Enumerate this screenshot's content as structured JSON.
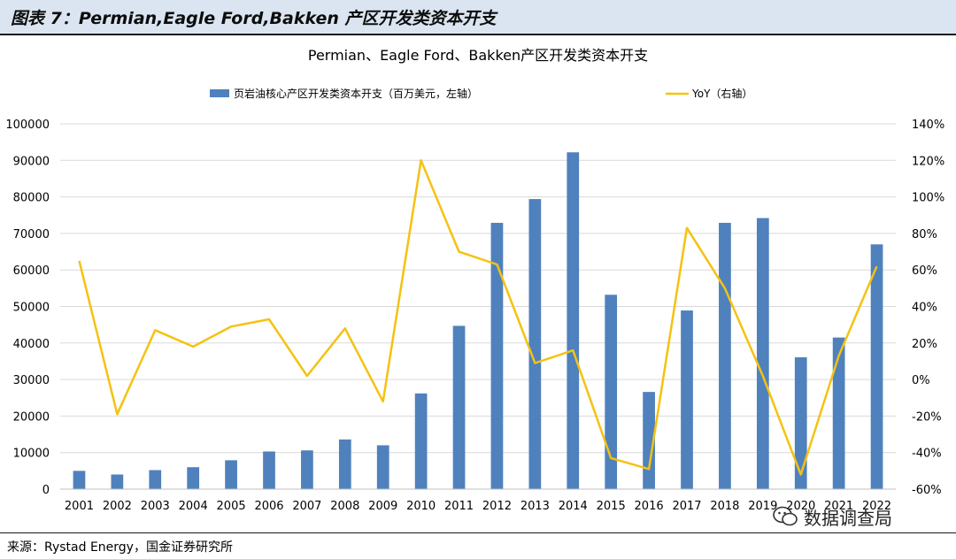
{
  "header": {
    "title": "图表 7：Permian,Eagle Ford,Bakken 产区开发类资本开支"
  },
  "source": {
    "text": "来源：Rystad Energy，国金证券研究所"
  },
  "watermark": {
    "text": "数据调查局",
    "icon": "wechat-icon"
  },
  "colors": {
    "bars": "#4f81bd",
    "line": "#f5c211",
    "grid": "#d9d9d9",
    "header_bg": "#dbe5f1"
  },
  "chart_data": {
    "type": "bar",
    "title": "Permian、Eagle Ford、Bakken产区开发类资本开支",
    "categories": [
      "2001",
      "2002",
      "2003",
      "2004",
      "2005",
      "2006",
      "2007",
      "2008",
      "2009",
      "2010",
      "2011",
      "2012",
      "2013",
      "2014",
      "2015",
      "2016",
      "2017",
      "2018",
      "2019",
      "2020",
      "2021",
      "2022"
    ],
    "series": [
      {
        "name": "页岩油核心产区开发类资本开支（百万美元，左轴）",
        "type": "bar",
        "axis": "left",
        "values": [
          5000,
          4000,
          5200,
          6000,
          7900,
          10300,
          10600,
          13600,
          12000,
          26200,
          44700,
          72900,
          79400,
          92200,
          53200,
          26600,
          48900,
          72900,
          74200,
          36100,
          41500,
          67000
        ]
      },
      {
        "name": "YoY（右轴）",
        "type": "line",
        "axis": "right",
        "values": [
          65,
          -19,
          27,
          18,
          29,
          33,
          2,
          28,
          -12,
          120,
          70,
          63,
          9,
          16,
          -43,
          -49,
          83,
          50,
          2,
          -52,
          13,
          62
        ]
      }
    ],
    "y_left": {
      "min": 0,
      "max": 100000,
      "ticks": [
        "0",
        "10000",
        "20000",
        "30000",
        "40000",
        "50000",
        "60000",
        "70000",
        "80000",
        "90000",
        "100000"
      ]
    },
    "y_right": {
      "min": -60,
      "max": 140,
      "ticks": [
        "-60%",
        "-40%",
        "-20%",
        "0%",
        "20%",
        "40%",
        "60%",
        "80%",
        "100%",
        "120%",
        "140%"
      ]
    },
    "grid": true,
    "legend_position": "top"
  }
}
